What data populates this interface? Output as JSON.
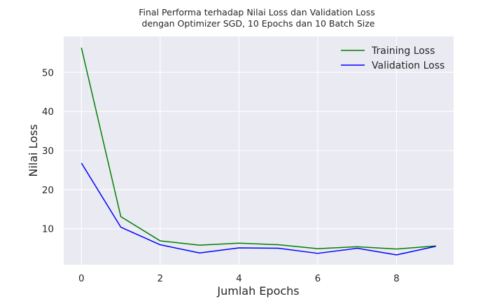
{
  "chart_data": {
    "type": "line",
    "title_lines": [
      "Final Performa terhadap Nilai Loss dan Validation Loss",
      "dengan Optimizer SGD, 10 Epochs dan 10 Batch Size"
    ],
    "xlabel": "Jumlah Epochs",
    "ylabel": "Nilai Loss",
    "x": [
      0,
      1,
      2,
      3,
      4,
      5,
      6,
      7,
      8,
      9
    ],
    "xlim": [
      -0.45,
      9.45
    ],
    "ylim": [
      0.8,
      59.2
    ],
    "xticks": [
      0,
      2,
      4,
      6,
      8
    ],
    "yticks": [
      10,
      20,
      30,
      40,
      50
    ],
    "grid": true,
    "background": "#eaeaf2",
    "legend_position": "top-right",
    "series": [
      {
        "name": "Training Loss",
        "color": "#008000",
        "values": [
          56.3,
          13.1,
          6.9,
          5.8,
          6.3,
          5.9,
          4.9,
          5.4,
          4.8,
          5.6
        ]
      },
      {
        "name": "Validation Loss",
        "color": "#0000ff",
        "values": [
          26.8,
          10.4,
          5.9,
          3.8,
          5.1,
          5.0,
          3.7,
          5.0,
          3.3,
          5.5
        ]
      }
    ]
  }
}
